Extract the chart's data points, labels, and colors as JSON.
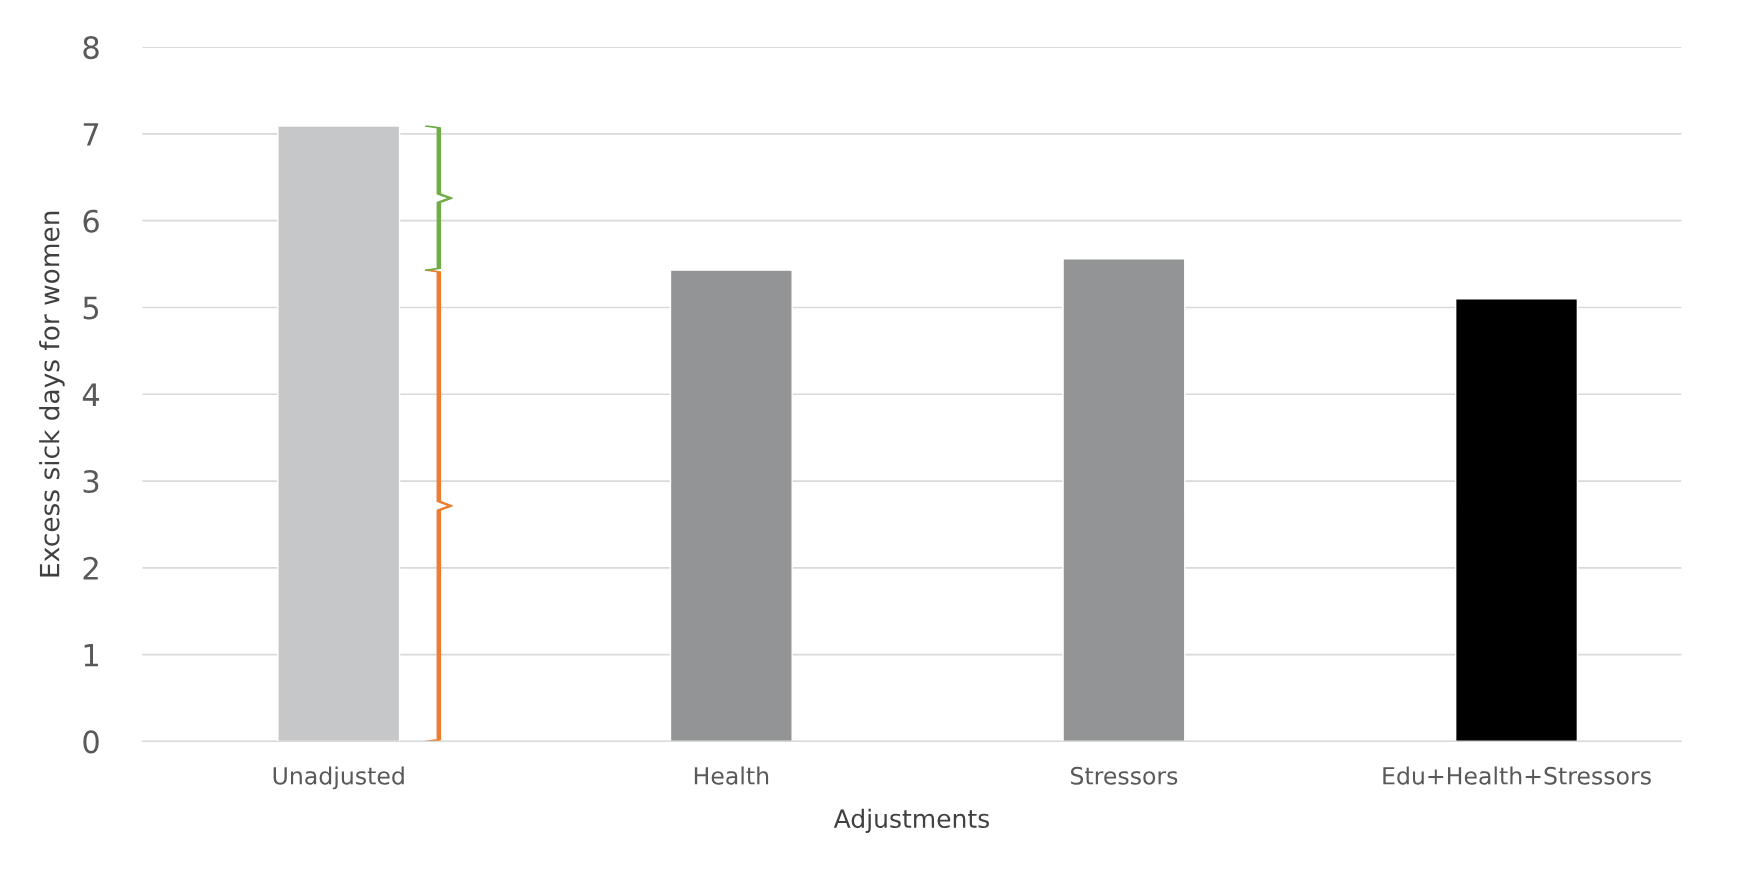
{
  "chart_data": {
    "type": "bar",
    "xlabel": "Adjustments",
    "ylabel": "Excess sick days for women",
    "categories": [
      "Unadjusted",
      "Health",
      "Stressors",
      "Edu+Health+Stressors"
    ],
    "values": [
      7.09,
      5.43,
      5.56,
      5.1
    ],
    "colors": [
      "#c6c7c9",
      "#939495",
      "#939495",
      "#000000"
    ],
    "ylim": [
      0,
      8
    ],
    "yticks": [
      0,
      1,
      2,
      3,
      4,
      5,
      6,
      7,
      8
    ],
    "grid": "y"
  }
}
